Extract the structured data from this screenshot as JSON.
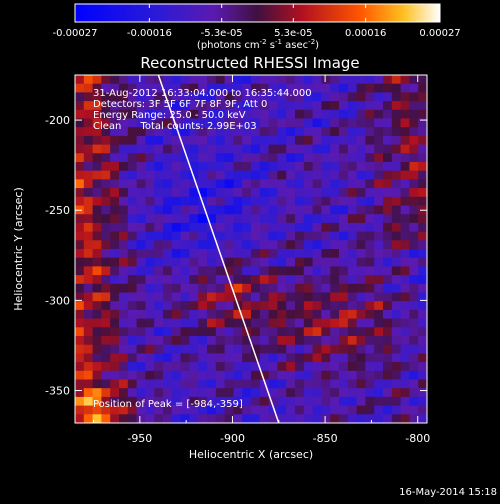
{
  "chart_data": {
    "type": "heatmap",
    "title": "Reconstructed RHESSI Image",
    "xlabel": "Heliocentric X (arcsec)",
    "ylabel": "Heliocentric Y (arcsec)",
    "xlim": [
      -985,
      -795
    ],
    "ylim": [
      -368,
      -175
    ],
    "x_ticks": [
      -950,
      -900,
      -850,
      -800
    ],
    "x_tick_labels": [
      "-950",
      "-900",
      "-850",
      "-800"
    ],
    "y_ticks": [
      -200,
      -250,
      -300,
      -350
    ],
    "y_tick_labels": [
      "-200",
      "-250",
      "-300",
      "-350"
    ],
    "colorbar": {
      "range": [
        -0.00027,
        0.00027
      ],
      "tick_values": [
        -0.00027,
        -0.00016,
        -5.3e-05,
        5.3e-05,
        0.00016,
        0.00027
      ],
      "tick_labels": [
        "-0.00027",
        "-0.00016",
        "-5.3e-05",
        "5.3e-05",
        "0.00016",
        "0.00027"
      ],
      "units_prefix": "(photons cm",
      "units_exp1": "-2",
      "units_mid": " s",
      "units_exp2": "-1",
      "units_mid2": " asec",
      "units_exp3": "-2",
      "units_suffix": ")"
    },
    "annotations": [
      "31-Aug-2012 16:33:04.000 to 16:35:44.000",
      "Detectors: 3F 5F 6F 7F 8F 9F, Att 0",
      "Energy Range: 25.0 - 50.0 keV",
      "Clean      Total counts: 2.99E+03"
    ],
    "peak_label": "Position of Peak = [-984,-359]",
    "limb_line": {
      "x": [
        -940,
        -875
      ],
      "y": [
        -175,
        -368
      ]
    },
    "grid": false,
    "legend": "none"
  },
  "footer": {
    "date": "16-May-2014 15:18"
  }
}
